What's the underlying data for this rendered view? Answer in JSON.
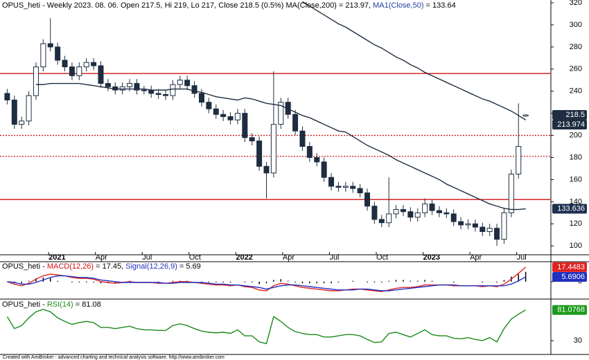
{
  "chart_data": [
    {
      "type": "candlestick",
      "title_parts": [
        {
          "text": "OPUS_heti - Weekly 2023. 08. 06. Open 217.5, Hi 219, Lo 217, Close 218.5 (0.5%) MA(Close,200) = 213.97, ",
          "color": "#000000"
        },
        {
          "text": "MA1(Close,50)",
          "color": "#2040a0"
        },
        {
          "text": " = 133.64",
          "color": "#000000"
        }
      ],
      "x": [
        1,
        3,
        5,
        7,
        9,
        11,
        13,
        15,
        17,
        19,
        21,
        23,
        25,
        27,
        29,
        31,
        33,
        35,
        37,
        39,
        41,
        43,
        45,
        47,
        49,
        51,
        53,
        55,
        57,
        59,
        61,
        63,
        65,
        67,
        69,
        71,
        73,
        75,
        77,
        79,
        81,
        83,
        85,
        87,
        89,
        91,
        93,
        95,
        97,
        99,
        101,
        103,
        105,
        107,
        109,
        111,
        113,
        115,
        117,
        119,
        121,
        123,
        125,
        127,
        129,
        131,
        133,
        135,
        137,
        139,
        141,
        143,
        145
      ],
      "xlim": [
        -1,
        152
      ],
      "xticks": [
        {
          "value": 12.5,
          "label": "2021"
        },
        {
          "value": 25.5,
          "label": "Apr"
        },
        {
          "value": 38.5,
          "label": "Jul"
        },
        {
          "value": 51.5,
          "label": "Oct"
        },
        {
          "value": 64.5,
          "label": "2022"
        },
        {
          "value": 77.5,
          "label": "Apr"
        },
        {
          "value": 90.5,
          "label": "Jul"
        },
        {
          "value": 103.5,
          "label": "Oct"
        },
        {
          "value": 116.5,
          "label": "2023"
        },
        {
          "value": 129.5,
          "label": "Apr"
        },
        {
          "value": 142.5,
          "label": "Jul"
        }
      ],
      "ylim": [
        92,
        322.5
      ],
      "yticks": [
        100,
        120,
        140,
        160,
        180,
        200,
        220,
        240,
        260,
        280,
        300,
        320
      ],
      "open": [
        238,
        232,
        210,
        213,
        236,
        262,
        283,
        280,
        268,
        262,
        254,
        262,
        266,
        263,
        247,
        244,
        241,
        244,
        247,
        241,
        241,
        238,
        237,
        236,
        246,
        250,
        245,
        238,
        230,
        224,
        219,
        217,
        214,
        220,
        198,
        195,
        172,
        166,
        210,
        230,
        219,
        204,
        190,
        180,
        176,
        162,
        154,
        153,
        154,
        152,
        148,
        136,
        124,
        121,
        129,
        133,
        131,
        126,
        130,
        138,
        132,
        130,
        129,
        122,
        119,
        120,
        117,
        113,
        116,
        106,
        130,
        165,
        217.5
      ],
      "high": [
        242,
        236,
        217,
        240,
        266,
        287,
        306,
        284,
        272,
        266,
        266,
        270,
        270,
        267,
        251,
        248,
        248,
        251,
        251,
        245,
        245,
        242,
        241,
        250,
        254,
        254,
        249,
        242,
        234,
        228,
        223,
        221,
        224,
        224,
        202,
        199,
        176,
        258,
        234,
        234,
        223,
        208,
        194,
        184,
        180,
        166,
        158,
        158,
        158,
        156,
        152,
        140,
        128,
        162,
        137,
        137,
        135,
        134,
        143,
        142,
        136,
        134,
        133,
        126,
        124,
        124,
        121,
        120,
        120,
        134,
        169,
        229,
        219
      ],
      "low": [
        228,
        206,
        206,
        209,
        232,
        258,
        276,
        264,
        258,
        250,
        250,
        258,
        259,
        243,
        240,
        237,
        237,
        240,
        237,
        237,
        234,
        233,
        232,
        232,
        242,
        241,
        234,
        226,
        220,
        215,
        213,
        210,
        210,
        194,
        191,
        168,
        143,
        162,
        206,
        215,
        200,
        186,
        176,
        172,
        158,
        150,
        149,
        149,
        148,
        144,
        132,
        120,
        117,
        117,
        125,
        127,
        122,
        122,
        126,
        128,
        126,
        125,
        118,
        115,
        115,
        113,
        109,
        109,
        100,
        102,
        126,
        161,
        217
      ],
      "close": [
        232,
        210,
        213,
        236,
        262,
        283,
        280,
        268,
        262,
        254,
        262,
        266,
        263,
        247,
        244,
        241,
        244,
        247,
        241,
        241,
        238,
        237,
        236,
        246,
        250,
        245,
        238,
        230,
        224,
        219,
        217,
        214,
        220,
        198,
        195,
        172,
        166,
        210,
        230,
        219,
        204,
        190,
        180,
        176,
        162,
        154,
        153,
        154,
        152,
        148,
        136,
        124,
        121,
        129,
        133,
        131,
        126,
        130,
        138,
        132,
        130,
        129,
        122,
        119,
        120,
        117,
        113,
        116,
        106,
        130,
        165,
        190,
        218.5
      ],
      "candle_up_color": "#ffffff",
      "candle_down_color": "#1e2d40",
      "candle_edge_color": "#1e2d40",
      "close_badge_color": "#1e2d40",
      "series": [
        {
          "name": "MA(Close,200)",
          "color": "#1e2d40",
          "badge_color": "#1e2d40",
          "values": [
            null,
            null,
            null,
            null,
            null,
            null,
            null,
            null,
            null,
            null,
            null,
            null,
            null,
            null,
            null,
            null,
            null,
            null,
            null,
            null,
            null,
            null,
            null,
            null,
            null,
            null,
            null,
            null,
            null,
            null,
            null,
            null,
            null,
            null,
            null,
            null,
            null,
            null,
            null,
            null,
            null,
            321,
            317,
            313,
            309,
            305,
            301,
            298,
            294,
            290,
            286,
            282,
            279,
            275,
            271,
            268,
            264,
            261,
            257,
            254,
            251,
            248,
            245,
            242,
            239,
            236,
            233,
            231,
            228,
            225,
            222,
            218,
            213.974
          ]
        },
        {
          "name": "MA1(Close,50)",
          "color": "#1e2d40",
          "badge_color": "#1e3050",
          "values": [
            null,
            null,
            null,
            null,
            246,
            246,
            247,
            247,
            247,
            247,
            247,
            246,
            245,
            244,
            243,
            242,
            242,
            242,
            242,
            242,
            241,
            241,
            241,
            242,
            242,
            242,
            240,
            239,
            237,
            235,
            234,
            233,
            232,
            234,
            233,
            231,
            229,
            228,
            227,
            224,
            221,
            218,
            216,
            213,
            210,
            207,
            204,
            203,
            199,
            195,
            191,
            188,
            185,
            182,
            178,
            175,
            172,
            169,
            166,
            163,
            160,
            156,
            153,
            150,
            147,
            144,
            141,
            138,
            136,
            134,
            133,
            133,
            133.636
          ]
        }
      ],
      "hlines": [
        {
          "value": 256,
          "color": "#d01010",
          "style": "solid"
        },
        {
          "value": 200,
          "color": "#d01010",
          "style": "dotted"
        },
        {
          "value": 181,
          "color": "#d01010",
          "style": "dotted"
        },
        {
          "value": 142,
          "color": "#d01010",
          "style": "solid"
        }
      ]
    },
    {
      "type": "line",
      "title_parts": [
        {
          "text": "OPUS_heti - ",
          "color": "#000000"
        },
        {
          "text": "MACD(12,26)",
          "color": "#d01010"
        },
        {
          "text": " = 17.45, ",
          "color": "#000000"
        },
        {
          "text": "Signal(12,26,9)",
          "color": "#2030c0"
        },
        {
          "text": " = 5.69",
          "color": "#000000"
        }
      ],
      "ylim": [
        -21,
        24
      ],
      "yticks": [
        0
      ],
      "histogram": {
        "color": "#000000",
        "values": [
          0,
          -2,
          -2,
          1,
          4,
          5,
          4,
          1,
          0,
          -1,
          -1,
          -1,
          -1,
          -2,
          -2,
          -2,
          0,
          1,
          0,
          0,
          0,
          -1,
          0,
          1,
          1,
          1,
          0,
          -1,
          -1,
          -1,
          -1,
          -1,
          0,
          -1,
          -1,
          -3,
          -2,
          2,
          3,
          1,
          -1,
          -2,
          -2,
          -2,
          -2,
          -2,
          -1,
          0,
          1,
          0,
          -1,
          -1,
          -1,
          1,
          2,
          2,
          1,
          1,
          2,
          1,
          0,
          0,
          -1,
          0,
          0,
          0,
          -1,
          0,
          -1,
          2,
          6,
          9,
          11.76
        ]
      },
      "series": [
        {
          "name": "MACD(12,26)",
          "color": "#e02020",
          "badge_color": "#e02020",
          "values": [
            0,
            -3,
            -5,
            -2,
            3,
            7,
            9,
            8,
            7,
            5,
            4,
            4,
            3,
            0,
            -1,
            -2,
            -1,
            0,
            -1,
            -1,
            -1,
            -2,
            -2,
            -1,
            0,
            0,
            -1,
            -2,
            -3,
            -4,
            -4,
            -5,
            -4,
            -6,
            -7,
            -10,
            -11,
            -5,
            -2,
            -3,
            -5,
            -7,
            -8,
            -9,
            -10,
            -11,
            -11,
            -10,
            -9,
            -9,
            -10,
            -11,
            -12,
            -10,
            -8,
            -7,
            -7,
            -6,
            -4,
            -4,
            -4,
            -4,
            -5,
            -5,
            -5,
            -5,
            -6,
            -5,
            -6,
            -3,
            3,
            10,
            17.4483
          ]
        },
        {
          "name": "Signal(12,26,9)",
          "color": "#2030c0",
          "badge_color": "#2030c0",
          "values": [
            0,
            -1,
            -3,
            -3,
            -1,
            2,
            5,
            7,
            7,
            6,
            5,
            5,
            4,
            2,
            1,
            0,
            -1,
            -1,
            -1,
            -1,
            -1,
            -1,
            -2,
            -2,
            -1,
            -1,
            -1,
            -1,
            -2,
            -3,
            -3,
            -4,
            -4,
            -5,
            -6,
            -7,
            -9,
            -7,
            -5,
            -4,
            -4,
            -5,
            -6,
            -7,
            -8,
            -9,
            -10,
            -10,
            -10,
            -9,
            -9,
            -10,
            -11,
            -11,
            -10,
            -9,
            -8,
            -7,
            -6,
            -5,
            -4,
            -4,
            -4,
            -5,
            -5,
            -5,
            -5,
            -5,
            -5,
            -5,
            -3,
            1,
            5.6906
          ]
        }
      ]
    },
    {
      "type": "line",
      "title_parts": [
        {
          "text": "OPUS_heti - ",
          "color": "#000000"
        },
        {
          "text": "RSI(14)",
          "color": "#1a8a1a"
        },
        {
          "text": " = 81.08",
          "color": "#000000"
        }
      ],
      "ylim": [
        7,
        98
      ],
      "yticks": [
        30
      ],
      "series": [
        {
          "name": "RSI(14)",
          "color": "#1a8a1a",
          "badge_color": "#1a9a1a",
          "values": [
            70,
            50,
            55,
            68,
            78,
            82,
            78,
            68,
            62,
            57,
            60,
            62,
            60,
            52,
            52,
            50,
            52,
            54,
            50,
            48,
            48,
            47,
            47,
            55,
            58,
            55,
            50,
            46,
            44,
            43,
            44,
            42,
            48,
            38,
            38,
            28,
            25,
            70,
            62,
            52,
            45,
            42,
            40,
            40,
            36,
            36,
            38,
            40,
            40,
            38,
            32,
            27,
            28,
            42,
            44,
            40,
            36,
            42,
            48,
            40,
            38,
            38,
            34,
            33,
            35,
            32,
            30,
            35,
            28,
            50,
            66,
            74,
            81.0768
          ]
        }
      ]
    }
  ],
  "footer": "Created with AmiBroker - advanced charting and technical analysis software. http://www.amibroker.com"
}
